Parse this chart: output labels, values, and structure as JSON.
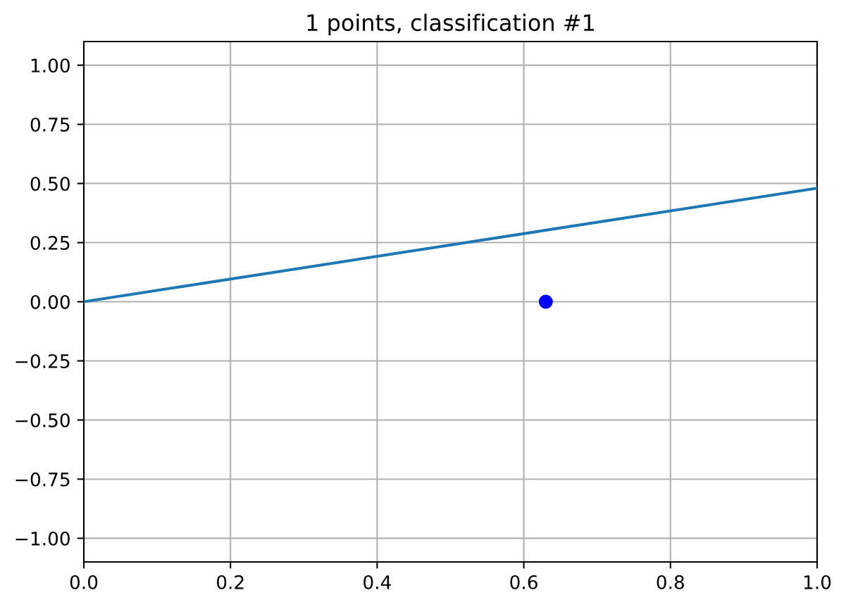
{
  "chart_data": {
    "type": "scatter",
    "title": "1 points, classification #1",
    "series": [
      {
        "type": "line",
        "color": "#1f77b4",
        "x": [
          0,
          1
        ],
        "values": [
          0,
          0.48
        ],
        "marker": "none"
      },
      {
        "color": "#0000ff",
        "x": [
          0.63
        ],
        "values": [
          0
        ],
        "marker": "circle"
      }
    ],
    "xlim": [
      0,
      1
    ],
    "ylim": [
      -1.1,
      1.1
    ],
    "xticks": [
      {
        "value": 0,
        "label": "0.0"
      },
      {
        "value": 0.2,
        "label": "0.2"
      },
      {
        "value": 0.4,
        "label": "0.4"
      },
      {
        "value": 0.6,
        "label": "0.6"
      },
      {
        "value": 0.8,
        "label": "0.8"
      },
      {
        "value": 1,
        "label": "1.0"
      }
    ],
    "yticks": [
      {
        "value": -1,
        "label": "−1.00"
      },
      {
        "value": -0.75,
        "label": "−0.75"
      },
      {
        "value": -0.5,
        "label": "−0.50"
      },
      {
        "value": -0.25,
        "label": "−0.25"
      },
      {
        "value": 0,
        "label": "0.00"
      },
      {
        "value": 0.25,
        "label": "0.25"
      },
      {
        "value": 0.5,
        "label": "0.50"
      },
      {
        "value": 0.75,
        "label": "0.75"
      },
      {
        "value": 1,
        "label": "1.00"
      }
    ],
    "grid": true
  }
}
